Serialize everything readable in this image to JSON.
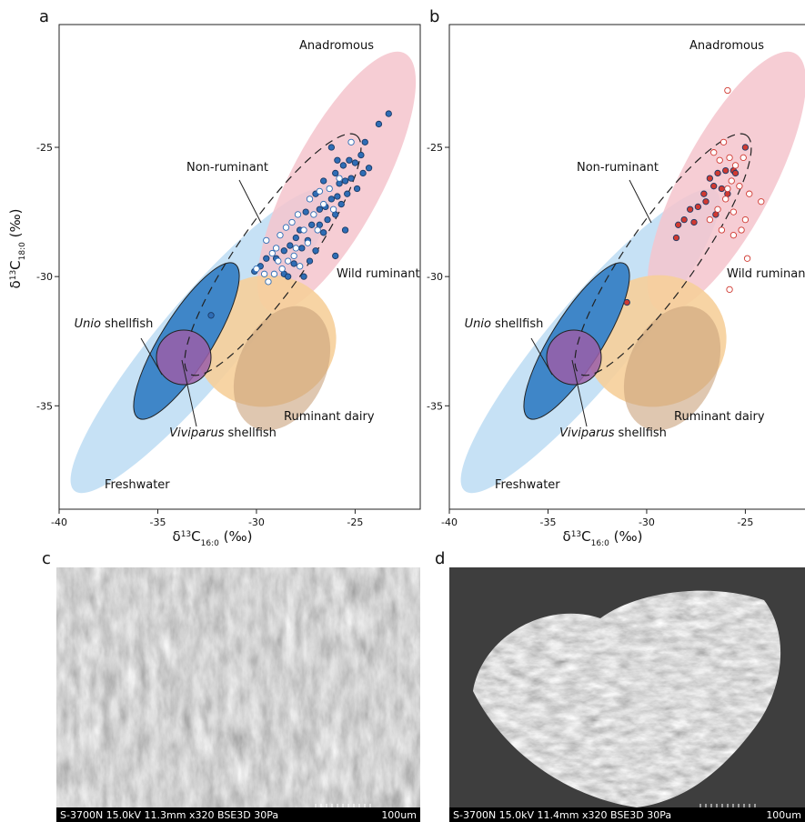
{
  "chart_data": [
    {
      "type": "scatter",
      "panel_label": "a",
      "xlabel": [
        "δ",
        "13",
        "C",
        "16:0",
        " (‰)"
      ],
      "ylabel": [
        "δ",
        "13",
        "C",
        "18:0",
        " (‰)"
      ],
      "xlim": [
        -40,
        -21.7
      ],
      "ylim": [
        -39,
        -20.25
      ],
      "xticks": [
        -40,
        -35,
        -30,
        -25
      ],
      "yticks": [
        -35,
        -30,
        -25
      ],
      "annotations": [
        "Anadromous",
        "Non-ruminant",
        "Wild ruminant",
        [
          "Unio",
          "shellfish"
        ],
        "Ruminant dairy",
        [
          "Viviparus",
          "shellfish"
        ],
        "Freshwater"
      ],
      "series": [
        {
          "color": "#2f6db5",
          "fill": "filled",
          "x": [
            -23.3,
            -23.8,
            -24.5,
            -24.7,
            -25.0,
            -25.3,
            -25.6,
            -25.9,
            -24.3,
            -24.6,
            -25.2,
            -25.5,
            -25.8,
            -26.0,
            -24.9,
            -25.4,
            -25.9,
            -26.2,
            -26.5,
            -26.8,
            -25.7,
            -26.0,
            -26.4,
            -26.8,
            -27.2,
            -27.5,
            -27.8,
            -28.0,
            -27.4,
            -27.7,
            -27.0,
            -28.3,
            -28.6,
            -29.0,
            -28.1,
            -29.5,
            -29.8,
            -30.1,
            -28.6,
            -27.3,
            -26.0,
            -28.4,
            -27.6,
            -32.3,
            -26.6,
            -25.5,
            -26.2,
            -26.6,
            -27.0
          ],
          "y": [
            -23.7,
            -24.1,
            -24.8,
            -25.3,
            -25.6,
            -25.5,
            -25.7,
            -25.5,
            -25.8,
            -26.0,
            -26.2,
            -26.3,
            -26.4,
            -26.0,
            -26.6,
            -26.8,
            -26.9,
            -27.0,
            -27.3,
            -27.4,
            -27.2,
            -27.6,
            -27.8,
            -28.0,
            -28.0,
            -27.5,
            -28.2,
            -28.5,
            -28.6,
            -28.9,
            -29.0,
            -28.8,
            -29.0,
            -29.3,
            -29.5,
            -29.3,
            -29.6,
            -29.8,
            -29.9,
            -29.4,
            -29.2,
            -30.0,
            -30.0,
            -31.5,
            -28.3,
            -28.2,
            -25.0,
            -26.3,
            -26.8
          ]
        },
        {
          "color": "#2f6db5",
          "fill": "open",
          "x": [
            -29.5,
            -29.0,
            -28.8,
            -28.5,
            -28.2,
            -27.9,
            -27.3,
            -26.8,
            -26.3,
            -26.6,
            -27.1,
            -27.6,
            -28.0,
            -28.4,
            -28.9,
            -29.2,
            -29.6,
            -30.0,
            -29.4,
            -29.1,
            -27.8,
            -28.1,
            -27.4,
            -26.9,
            -26.1,
            -25.8,
            -25.2,
            -28.7
          ],
          "y": [
            -28.6,
            -28.9,
            -28.4,
            -28.1,
            -27.9,
            -27.6,
            -27.0,
            -26.7,
            -26.6,
            -27.2,
            -27.6,
            -28.2,
            -28.9,
            -29.4,
            -29.4,
            -29.1,
            -29.9,
            -29.7,
            -30.2,
            -29.9,
            -29.6,
            -29.2,
            -28.7,
            -28.2,
            -27.4,
            -26.2,
            -24.8,
            -29.7
          ]
        }
      ]
    },
    {
      "type": "scatter",
      "panel_label": "b",
      "xlabel": [
        "δ",
        "13",
        "C",
        "16:0",
        " (‰)"
      ],
      "xlim": [
        -40,
        -21.7
      ],
      "ylim": [
        -39,
        -20.25
      ],
      "xticks": [
        -40,
        -35,
        -30,
        -25
      ],
      "yticks": [
        -35,
        -30,
        -25
      ],
      "annotations": [
        "Anadromous",
        "Non-ruminant",
        "Wild ruminant",
        [
          "Unio",
          "shellfish"
        ],
        "Ruminant dairy",
        [
          "Viviparus",
          "shellfish"
        ],
        "Freshwater"
      ],
      "series": [
        {
          "color": "#d03a32",
          "fill": "filled",
          "x": [
            -25.0,
            -25.6,
            -26.0,
            -26.4,
            -26.8,
            -26.2,
            -26.6,
            -27.1,
            -27.0,
            -27.4,
            -27.8,
            -26.5,
            -27.6,
            -28.1,
            -28.4,
            -28.5,
            -31.0,
            -25.9,
            -25.5
          ],
          "y": [
            -25.0,
            -25.9,
            -25.9,
            -26.0,
            -26.2,
            -26.6,
            -26.5,
            -26.8,
            -27.1,
            -27.3,
            -27.4,
            -27.6,
            -27.9,
            -27.8,
            -28.0,
            -28.5,
            -31.0,
            -26.8,
            -26.0
          ]
        },
        {
          "color": "#d03a32",
          "fill": "open",
          "x": [
            -25.9,
            -26.1,
            -26.3,
            -25.8,
            -25.5,
            -25.7,
            -25.9,
            -25.3,
            -24.8,
            -24.2,
            -25.0,
            -25.6,
            -26.0,
            -26.4,
            -26.8,
            -26.2,
            -25.2,
            -25.6,
            -24.9,
            -25.8,
            -26.6,
            -25.1
          ],
          "y": [
            -22.8,
            -24.8,
            -25.5,
            -25.4,
            -25.7,
            -26.3,
            -26.6,
            -26.5,
            -26.8,
            -27.1,
            -27.8,
            -27.5,
            -27.0,
            -27.4,
            -27.8,
            -28.2,
            -28.2,
            -28.4,
            -29.3,
            -30.5,
            -25.2,
            -25.4
          ]
        }
      ]
    }
  ],
  "images": [
    {
      "label": "c",
      "caption": "S-3700N 15.0kV 11.3mm x320 BSE3D 30Pa",
      "scale": "100um"
    },
    {
      "label": "d",
      "caption": "S-3700N 15.0kV 11.4mm x320 BSE3D 30Pa",
      "scale": "100um"
    }
  ]
}
